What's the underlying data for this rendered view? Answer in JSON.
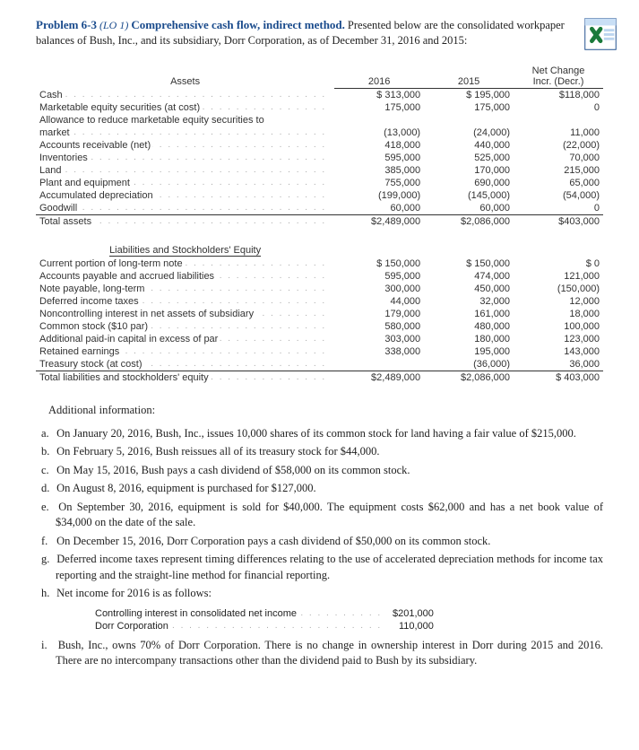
{
  "problem": {
    "number": "Problem 6-3",
    "lo": "(LO 1)",
    "subtitle": "Comprehensive cash flow, indirect method.",
    "intro": "Presented below are the consolidated workpaper balances of Bush, Inc., and its subsidiary, Dorr Corporation, as of December 31, 2016 and 2015:"
  },
  "columns": {
    "c1": "2016",
    "c2": "2015",
    "c3a": "Net Change",
    "c3b": "Incr. (Decr.)"
  },
  "assets": {
    "heading": "Assets",
    "rows": [
      {
        "label": "Cash",
        "v2016": "$  313,000",
        "v2015": "$  195,000",
        "chg": "$118,000",
        "indent": false
      },
      {
        "label": "Marketable equity securities (at cost)",
        "v2016": "175,000",
        "v2015": "175,000",
        "chg": "0",
        "indent": false
      },
      {
        "label": "Allowance to reduce marketable equity securities to",
        "v2016": "",
        "v2015": "",
        "chg": "",
        "indent": false,
        "nodots": true
      },
      {
        "label": "market",
        "v2016": "(13,000)",
        "v2015": "(24,000)",
        "chg": "11,000",
        "indent": true
      },
      {
        "label": "Accounts receivable (net)",
        "v2016": "418,000",
        "v2015": "440,000",
        "chg": "(22,000)",
        "indent": false
      },
      {
        "label": "Inventories",
        "v2016": "595,000",
        "v2015": "525,000",
        "chg": "70,000",
        "indent": false
      },
      {
        "label": "Land",
        "v2016": "385,000",
        "v2015": "170,000",
        "chg": "215,000",
        "indent": false
      },
      {
        "label": "Plant and equipment",
        "v2016": "755,000",
        "v2015": "690,000",
        "chg": "65,000",
        "indent": false
      },
      {
        "label": "Accumulated depreciation",
        "v2016": "(199,000)",
        "v2015": "(145,000)",
        "chg": "(54,000)",
        "indent": false
      },
      {
        "label": "Goodwill",
        "v2016": "60,000",
        "v2015": "60,000",
        "chg": "0",
        "indent": false
      }
    ],
    "total": {
      "label": "Total assets",
      "v2016": "$2,489,000",
      "v2015": "$2,086,000",
      "chg": "$403,000"
    }
  },
  "liab": {
    "heading": "Liabilities and Stockholders' Equity",
    "rows": [
      {
        "label": "Current portion of long-term note",
        "v2016": "$  150,000",
        "v2015": "$  150,000",
        "chg": "$         0"
      },
      {
        "label": "Accounts payable and accrued liabilities",
        "v2016": "595,000",
        "v2015": "474,000",
        "chg": "121,000"
      },
      {
        "label": "Note payable, long-term",
        "v2016": "300,000",
        "v2015": "450,000",
        "chg": "(150,000)"
      },
      {
        "label": "Deferred income taxes",
        "v2016": "44,000",
        "v2015": "32,000",
        "chg": "12,000"
      },
      {
        "label": "Noncontrolling interest in net assets of subsidiary",
        "v2016": "179,000",
        "v2015": "161,000",
        "chg": "18,000"
      },
      {
        "label": "Common stock ($10 par)",
        "v2016": "580,000",
        "v2015": "480,000",
        "chg": "100,000"
      },
      {
        "label": "Additional paid-in capital in excess of par",
        "v2016": "303,000",
        "v2015": "180,000",
        "chg": "123,000"
      },
      {
        "label": "Retained earnings",
        "v2016": "338,000",
        "v2015": "195,000",
        "chg": "143,000"
      },
      {
        "label": "Treasury stock (at cost)",
        "v2016": "",
        "v2015": "(36,000)",
        "chg": "36,000"
      }
    ],
    "total": {
      "label": "Total liabilities and stockholders' equity",
      "v2016": "$2,489,000",
      "v2015": "$2,086,000",
      "chg": "$ 403,000"
    }
  },
  "additional_heading": "Additional information:",
  "info": [
    {
      "mk": "a.",
      "text": "On January 20, 2016, Bush, Inc., issues 10,000 shares of its common stock for land having a fair value of $215,000."
    },
    {
      "mk": "b.",
      "text": "On February 5, 2016, Bush reissues all of its treasury stock for $44,000."
    },
    {
      "mk": "c.",
      "text": "On May 15, 2016, Bush pays a cash dividend of $58,000 on its common stock."
    },
    {
      "mk": "d.",
      "text": "On August 8, 2016, equipment is purchased for $127,000."
    },
    {
      "mk": "e.",
      "text": "On September 30, 2016, equipment is sold for $40,000. The equipment costs $62,000 and has a net book value of $34,000 on the date of the sale."
    },
    {
      "mk": "f.",
      "text": "On December 15, 2016, Dorr Corporation pays a cash dividend of $50,000 on its common stock."
    },
    {
      "mk": "g.",
      "text": "Deferred income taxes represent timing differences relating to the use of accelerated depreciation methods for income tax reporting and the straight-line method for financial reporting."
    },
    {
      "mk": "h.",
      "text": "Net income for 2016 is as follows:"
    }
  ],
  "netincome": [
    {
      "label": "Controlling interest in consolidated net income",
      "value": "$201,000"
    },
    {
      "label": "Dorr Corporation",
      "value": "110,000"
    }
  ],
  "info_tail": [
    {
      "mk": "i.",
      "text": "Bush, Inc., owns 70% of Dorr Corporation. There is no change in ownership interest in Dorr during 2015 and 2016. There are no intercompany transactions other than the dividend paid to Bush by its subsidiary."
    }
  ]
}
